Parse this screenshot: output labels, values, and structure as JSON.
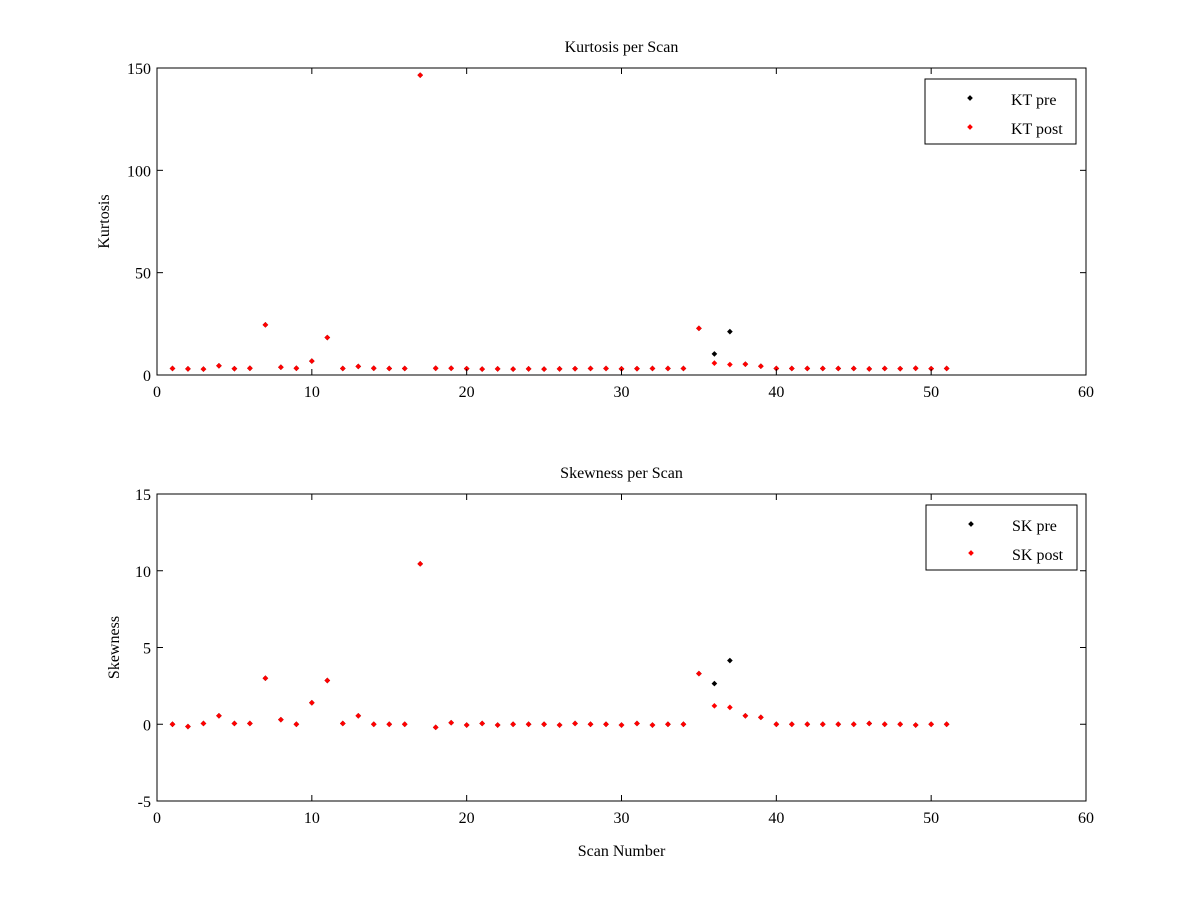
{
  "chart_data": [
    {
      "type": "scatter",
      "title": "Kurtosis per Scan",
      "xlabel": "",
      "ylabel": "Kurtosis",
      "xlim": [
        0,
        60
      ],
      "ylim": [
        0,
        150
      ],
      "xticks": [
        0,
        10,
        20,
        30,
        40,
        50,
        60
      ],
      "yticks": [
        0,
        50,
        100,
        150
      ],
      "grid": false,
      "legend": "top-right",
      "series": [
        {
          "name": "KT pre",
          "color": "#000000",
          "points": [
            [
              1,
              3.2
            ],
            [
              2,
              3.0
            ],
            [
              3,
              2.9
            ],
            [
              4,
              4.5
            ],
            [
              5,
              3.1
            ],
            [
              6,
              3.3
            ],
            [
              7,
              24.5
            ],
            [
              8,
              3.8
            ],
            [
              9,
              3.3
            ],
            [
              10,
              6.8
            ],
            [
              11,
              18.3
            ],
            [
              12,
              3.2
            ],
            [
              13,
              4.2
            ],
            [
              14,
              3.3
            ],
            [
              15,
              3.2
            ],
            [
              16,
              3.2
            ],
            [
              17,
              146.5
            ],
            [
              18,
              3.3
            ],
            [
              19,
              3.3
            ],
            [
              20,
              3.1
            ],
            [
              21,
              2.9
            ],
            [
              22,
              3.0
            ],
            [
              23,
              2.9
            ],
            [
              24,
              3.0
            ],
            [
              25,
              2.9
            ],
            [
              26,
              3.0
            ],
            [
              27,
              3.1
            ],
            [
              28,
              3.2
            ],
            [
              29,
              3.2
            ],
            [
              30,
              3.0
            ],
            [
              31,
              3.1
            ],
            [
              32,
              3.2
            ],
            [
              33,
              3.2
            ],
            [
              34,
              3.2
            ],
            [
              35,
              22.8
            ],
            [
              36,
              10.3
            ],
            [
              37,
              21.2
            ],
            [
              38,
              5.3
            ],
            [
              39,
              4.3
            ],
            [
              40,
              3.2
            ],
            [
              41,
              3.2
            ],
            [
              42,
              3.2
            ],
            [
              43,
              3.2
            ],
            [
              44,
              3.2
            ],
            [
              45,
              3.2
            ],
            [
              46,
              3.0
            ],
            [
              47,
              3.2
            ],
            [
              48,
              3.1
            ],
            [
              49,
              3.3
            ],
            [
              50,
              3.1
            ],
            [
              51,
              3.2
            ]
          ]
        },
        {
          "name": "KT post",
          "color": "#ff0000",
          "points": [
            [
              1,
              3.2
            ],
            [
              2,
              3.0
            ],
            [
              3,
              2.9
            ],
            [
              4,
              4.5
            ],
            [
              5,
              3.1
            ],
            [
              6,
              3.3
            ],
            [
              7,
              24.5
            ],
            [
              8,
              3.8
            ],
            [
              9,
              3.3
            ],
            [
              10,
              6.8
            ],
            [
              11,
              18.3
            ],
            [
              12,
              3.2
            ],
            [
              13,
              4.2
            ],
            [
              14,
              3.3
            ],
            [
              15,
              3.2
            ],
            [
              16,
              3.2
            ],
            [
              17,
              146.5
            ],
            [
              18,
              3.3
            ],
            [
              19,
              3.3
            ],
            [
              20,
              3.1
            ],
            [
              21,
              2.9
            ],
            [
              22,
              3.0
            ],
            [
              23,
              2.9
            ],
            [
              24,
              3.0
            ],
            [
              25,
              2.9
            ],
            [
              26,
              3.0
            ],
            [
              27,
              3.1
            ],
            [
              28,
              3.2
            ],
            [
              29,
              3.2
            ],
            [
              30,
              3.0
            ],
            [
              31,
              3.1
            ],
            [
              32,
              3.2
            ],
            [
              33,
              3.2
            ],
            [
              34,
              3.2
            ],
            [
              35,
              22.8
            ],
            [
              36,
              5.8
            ],
            [
              37,
              5.1
            ],
            [
              38,
              5.3
            ],
            [
              39,
              4.3
            ],
            [
              40,
              3.2
            ],
            [
              41,
              3.2
            ],
            [
              42,
              3.2
            ],
            [
              43,
              3.2
            ],
            [
              44,
              3.2
            ],
            [
              45,
              3.2
            ],
            [
              46,
              3.0
            ],
            [
              47,
              3.2
            ],
            [
              48,
              3.1
            ],
            [
              49,
              3.3
            ],
            [
              50,
              3.1
            ],
            [
              51,
              3.2
            ]
          ]
        }
      ]
    },
    {
      "type": "scatter",
      "title": "Skewness per Scan",
      "xlabel": "Scan Number",
      "ylabel": "Skewness",
      "xlim": [
        0,
        60
      ],
      "ylim": [
        -5,
        15
      ],
      "xticks": [
        0,
        10,
        20,
        30,
        40,
        50,
        60
      ],
      "yticks": [
        -5,
        0,
        5,
        10,
        15
      ],
      "grid": false,
      "legend": "top-right",
      "series": [
        {
          "name": "SK pre",
          "color": "#000000",
          "points": [
            [
              1,
              0.0
            ],
            [
              2,
              -0.15
            ],
            [
              3,
              0.05
            ],
            [
              4,
              0.55
            ],
            [
              5,
              0.05
            ],
            [
              6,
              0.05
            ],
            [
              7,
              3.0
            ],
            [
              8,
              0.3
            ],
            [
              9,
              0.0
            ],
            [
              10,
              1.4
            ],
            [
              11,
              2.85
            ],
            [
              12,
              0.05
            ],
            [
              13,
              0.55
            ],
            [
              14,
              0.0
            ],
            [
              15,
              0.0
            ],
            [
              16,
              0.0
            ],
            [
              17,
              10.45
            ],
            [
              18,
              -0.2
            ],
            [
              19,
              0.1
            ],
            [
              20,
              -0.05
            ],
            [
              21,
              0.05
            ],
            [
              22,
              -0.05
            ],
            [
              23,
              0.0
            ],
            [
              24,
              0.0
            ],
            [
              25,
              0.0
            ],
            [
              26,
              -0.05
            ],
            [
              27,
              0.05
            ],
            [
              28,
              0.0
            ],
            [
              29,
              0.0
            ],
            [
              30,
              -0.05
            ],
            [
              31,
              0.05
            ],
            [
              32,
              -0.05
            ],
            [
              33,
              0.0
            ],
            [
              34,
              0.0
            ],
            [
              35,
              3.3
            ],
            [
              36,
              2.65
            ],
            [
              37,
              4.15
            ],
            [
              38,
              0.55
            ],
            [
              39,
              0.45
            ],
            [
              40,
              0.0
            ],
            [
              41,
              0.0
            ],
            [
              42,
              0.0
            ],
            [
              43,
              0.0
            ],
            [
              44,
              0.0
            ],
            [
              45,
              0.0
            ],
            [
              46,
              0.05
            ],
            [
              47,
              0.0
            ],
            [
              48,
              0.0
            ],
            [
              49,
              -0.05
            ],
            [
              50,
              0.0
            ],
            [
              51,
              0.0
            ]
          ]
        },
        {
          "name": "SK post",
          "color": "#ff0000",
          "points": [
            [
              1,
              0.0
            ],
            [
              2,
              -0.15
            ],
            [
              3,
              0.05
            ],
            [
              4,
              0.55
            ],
            [
              5,
              0.05
            ],
            [
              6,
              0.05
            ],
            [
              7,
              3.0
            ],
            [
              8,
              0.3
            ],
            [
              9,
              0.0
            ],
            [
              10,
              1.4
            ],
            [
              11,
              2.85
            ],
            [
              12,
              0.05
            ],
            [
              13,
              0.55
            ],
            [
              14,
              0.0
            ],
            [
              15,
              0.0
            ],
            [
              16,
              0.0
            ],
            [
              17,
              10.45
            ],
            [
              18,
              -0.2
            ],
            [
              19,
              0.1
            ],
            [
              20,
              -0.05
            ],
            [
              21,
              0.05
            ],
            [
              22,
              -0.05
            ],
            [
              23,
              0.0
            ],
            [
              24,
              0.0
            ],
            [
              25,
              0.0
            ],
            [
              26,
              -0.05
            ],
            [
              27,
              0.05
            ],
            [
              28,
              0.0
            ],
            [
              29,
              0.0
            ],
            [
              30,
              -0.05
            ],
            [
              31,
              0.05
            ],
            [
              32,
              -0.05
            ],
            [
              33,
              0.0
            ],
            [
              34,
              0.0
            ],
            [
              35,
              3.3
            ],
            [
              36,
              1.2
            ],
            [
              37,
              1.1
            ],
            [
              38,
              0.55
            ],
            [
              39,
              0.45
            ],
            [
              40,
              0.0
            ],
            [
              41,
              0.0
            ],
            [
              42,
              0.0
            ],
            [
              43,
              0.0
            ],
            [
              44,
              0.0
            ],
            [
              45,
              0.0
            ],
            [
              46,
              0.05
            ],
            [
              47,
              0.0
            ],
            [
              48,
              0.0
            ],
            [
              49,
              -0.05
            ],
            [
              50,
              0.0
            ],
            [
              51,
              0.0
            ]
          ]
        }
      ]
    }
  ]
}
